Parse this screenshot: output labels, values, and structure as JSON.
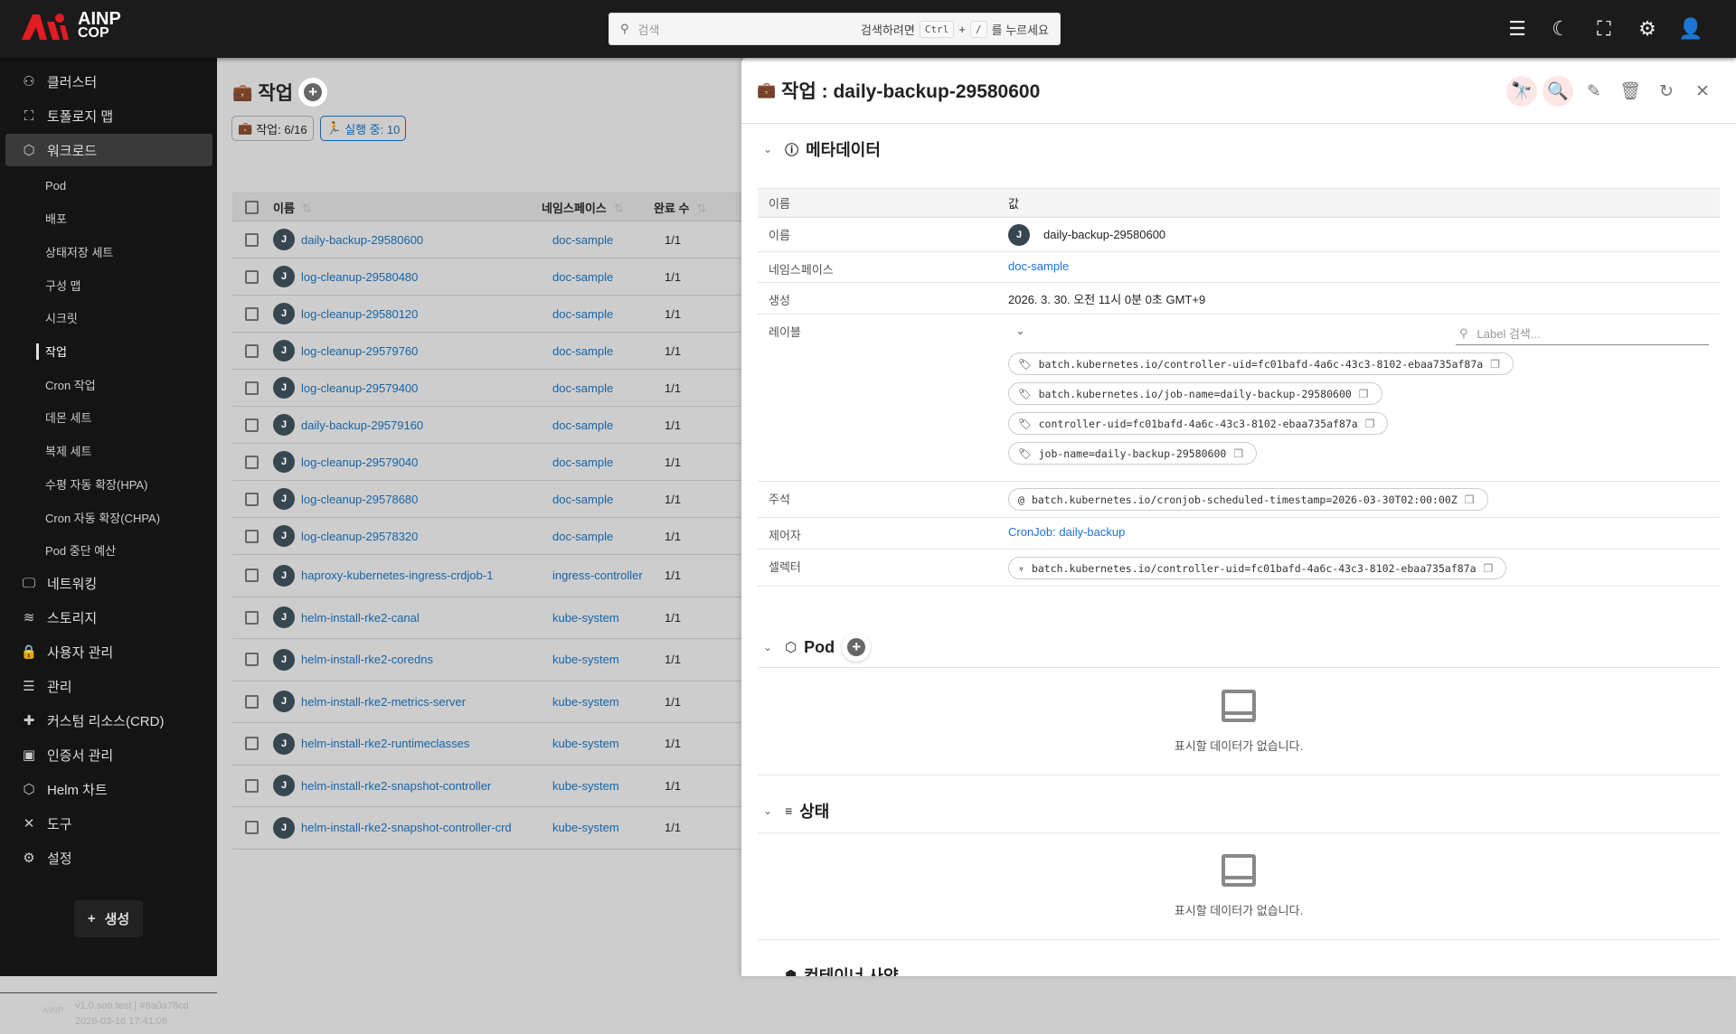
{
  "header": {
    "logo_top": "AINP",
    "logo_bottom": "COP",
    "search_placeholder": "검색",
    "search_hint_pre": "검색하려면",
    "key1": "Ctrl",
    "plus": "+",
    "key2": "/",
    "search_hint_post": "를 누르세요",
    "icons": [
      "menu-icon",
      "dark-mode-icon",
      "fullscreen-icon",
      "settings-icon",
      "user-icon"
    ]
  },
  "sidebar": {
    "items": [
      {
        "label": "클러스터",
        "icon": "cluster-icon",
        "glyph": "⚇"
      },
      {
        "label": "토폴로지 맵",
        "icon": "topology-icon",
        "glyph": "⛶"
      },
      {
        "label": "워크로드",
        "icon": "workload-icon",
        "glyph": "⬡",
        "active": true
      }
    ],
    "subitems": [
      "Pod",
      "배포",
      "상태저장 세트",
      "구성 맵",
      "시크릿",
      "작업",
      "Cron 작업",
      "데몬 세트",
      "복제 세트",
      "수평 자동 확장(HPA)",
      "Cron 자동 확장(CHPA)",
      "Pod 중단 예산"
    ],
    "active_sub": "작업",
    "items2": [
      {
        "label": "네트워킹",
        "icon": "network-icon",
        "glyph": "🖵"
      },
      {
        "label": "스토리지",
        "icon": "storage-icon",
        "glyph": "≋"
      },
      {
        "label": "사용자 관리",
        "icon": "lock-icon",
        "glyph": "🔒"
      },
      {
        "label": "관리",
        "icon": "admin-icon",
        "glyph": "☰"
      },
      {
        "label": "커스텀 리소스(CRD)",
        "icon": "puzzle-icon",
        "glyph": "✚"
      },
      {
        "label": "인증서 관리",
        "icon": "certificate-icon",
        "glyph": "▣"
      },
      {
        "label": "Helm 차트",
        "icon": "helm-icon",
        "glyph": "⬡"
      },
      {
        "label": "도구",
        "icon": "tools-icon",
        "glyph": "✕"
      },
      {
        "label": "설정",
        "icon": "gear-icon",
        "glyph": "⚙"
      }
    ],
    "create_label": "생성",
    "version": "v1.0.soo.test | #8a0a78cd",
    "build_time": "2026-03-16 17:41:08"
  },
  "list": {
    "title": "작업",
    "chip_jobs": "작업: 6/16",
    "chip_running": "실행 중: 10",
    "columns": [
      "이름",
      "네임스페이스",
      "완료 수"
    ],
    "rows": [
      {
        "name": "daily-backup-29580600",
        "ns": "doc-sample",
        "done": "1/1"
      },
      {
        "name": "log-cleanup-29580480",
        "ns": "doc-sample",
        "done": "1/1"
      },
      {
        "name": "log-cleanup-29580120",
        "ns": "doc-sample",
        "done": "1/1"
      },
      {
        "name": "log-cleanup-29579760",
        "ns": "doc-sample",
        "done": "1/1"
      },
      {
        "name": "log-cleanup-29579400",
        "ns": "doc-sample",
        "done": "1/1"
      },
      {
        "name": "daily-backup-29579160",
        "ns": "doc-sample",
        "done": "1/1"
      },
      {
        "name": "log-cleanup-29579040",
        "ns": "doc-sample",
        "done": "1/1"
      },
      {
        "name": "log-cleanup-29578680",
        "ns": "doc-sample",
        "done": "1/1"
      },
      {
        "name": "log-cleanup-29578320",
        "ns": "doc-sample",
        "done": "1/1"
      },
      {
        "name": "haproxy-kubernetes-ingress-crdjob-1",
        "ns": "ingress-controller",
        "done": "1/1"
      },
      {
        "name": "helm-install-rke2-canal",
        "ns": "kube-system",
        "done": "1/1"
      },
      {
        "name": "helm-install-rke2-coredns",
        "ns": "kube-system",
        "done": "1/1"
      },
      {
        "name": "helm-install-rke2-metrics-server",
        "ns": "kube-system",
        "done": "1/1"
      },
      {
        "name": "helm-install-rke2-runtimeclasses",
        "ns": "kube-system",
        "done": "1/1"
      },
      {
        "name": "helm-install-rke2-snapshot-controller",
        "ns": "kube-system",
        "done": "1/1"
      },
      {
        "name": "helm-install-rke2-snapshot-controller-crd",
        "ns": "kube-system",
        "done": "1/1"
      }
    ],
    "avatar_letter": "J"
  },
  "detail": {
    "title": "작업 : daily-backup-29580600",
    "metadata_title": "메타데이터",
    "col_name": "이름",
    "col_value": "값",
    "name_label": "이름",
    "name_value": "daily-backup-29580600",
    "namespace_label": "네임스페이스",
    "namespace_value": "doc-sample",
    "created_label": "생성",
    "created_value": "2026. 3. 30. 오전 11시 0분 0초 GMT+9",
    "labels_label": "레이블",
    "label_search_placeholder": "Label 검색...",
    "labels": [
      "batch.kubernetes.io/controller-uid=fc01bafd-4a6c-43c3-8102-ebaa735af87a",
      "batch.kubernetes.io/job-name=daily-backup-29580600",
      "controller-uid=fc01bafd-4a6c-43c3-8102-ebaa735af87a",
      "job-name=daily-backup-29580600"
    ],
    "annotations_label": "주석",
    "annotations": [
      "batch.kubernetes.io/cronjob-scheduled-timestamp=2026-03-30T02:00:00Z"
    ],
    "controller_label": "제어자",
    "controller_value": "CronJob: daily-backup",
    "selector_label": "셀렉터",
    "selectors": [
      "batch.kubernetes.io/controller-uid=fc01bafd-4a6c-43c3-8102-ebaa735af87a"
    ],
    "pod_title": "Pod",
    "pod_empty": "표시할 데이터가 없습니다.",
    "status_title": "상태",
    "status_empty": "표시할 데이터가 없습니다.",
    "container_title": "컨테이너 사양",
    "accent": "#e31b23"
  }
}
